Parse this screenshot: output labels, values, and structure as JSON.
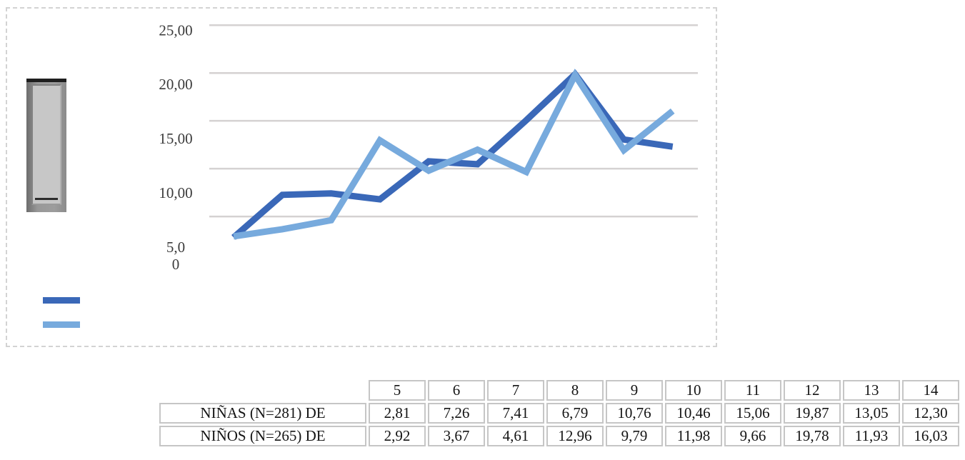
{
  "chart_data": {
    "type": "line",
    "title": "",
    "xlabel": "",
    "ylabel": "",
    "categories": [
      "5",
      "6",
      "7",
      "8",
      "9",
      "10",
      "11",
      "12",
      "13",
      "14"
    ],
    "series": [
      {
        "name": "NIÑAS (N=281) DE",
        "color": "#3a68b8",
        "values": [
          2.81,
          7.26,
          7.41,
          6.79,
          10.76,
          10.46,
          15.06,
          19.87,
          13.05,
          12.3
        ]
      },
      {
        "name": "NIÑOS (N=265) DE",
        "color": "#77aadd",
        "values": [
          2.92,
          3.67,
          4.61,
          12.96,
          9.79,
          11.98,
          9.66,
          19.78,
          11.93,
          16.03
        ]
      }
    ],
    "ylim": [
      0,
      25
    ],
    "yticks": [
      {
        "value": 25,
        "lines": [
          "25,00"
        ]
      },
      {
        "value": 20,
        "lines": [
          "20,00"
        ]
      },
      {
        "value": 15,
        "lines": [
          "15,00"
        ]
      },
      {
        "value": 10,
        "lines": [
          "10,00"
        ]
      },
      {
        "value": 5,
        "lines": [
          "5,0",
          "0"
        ]
      }
    ],
    "grid": true,
    "x_axis_labels_visible": false,
    "legend_position": "bottom-left",
    "legend_text_visible": false
  },
  "table": {
    "corner_blank": "",
    "column_headers": [
      "5",
      "6",
      "7",
      "8",
      "9",
      "10",
      "11",
      "12",
      "13",
      "14"
    ],
    "rows": [
      {
        "label": "NIÑAS (N=281) DE",
        "values": [
          "2,81",
          "7,26",
          "7,41",
          "6,79",
          "10,76",
          "10,46",
          "15,06",
          "19,87",
          "13,05",
          "12,30"
        ]
      },
      {
        "label": "NIÑOS (N=265) DE",
        "values": [
          "2,92",
          "3,67",
          "4,61",
          "12,96",
          "9,79",
          "11,98",
          "9,66",
          "19,78",
          "11,93",
          "16,03"
        ]
      }
    ]
  },
  "colors": {
    "grid_line": "#d5d2d2",
    "frame_border": "#d3d3d3",
    "table_border": "#c6c6c6",
    "chart_text": "#3b3b3b",
    "table_text": "#141414",
    "series_dark": "#3a68b8",
    "series_light": "#77aadd"
  }
}
